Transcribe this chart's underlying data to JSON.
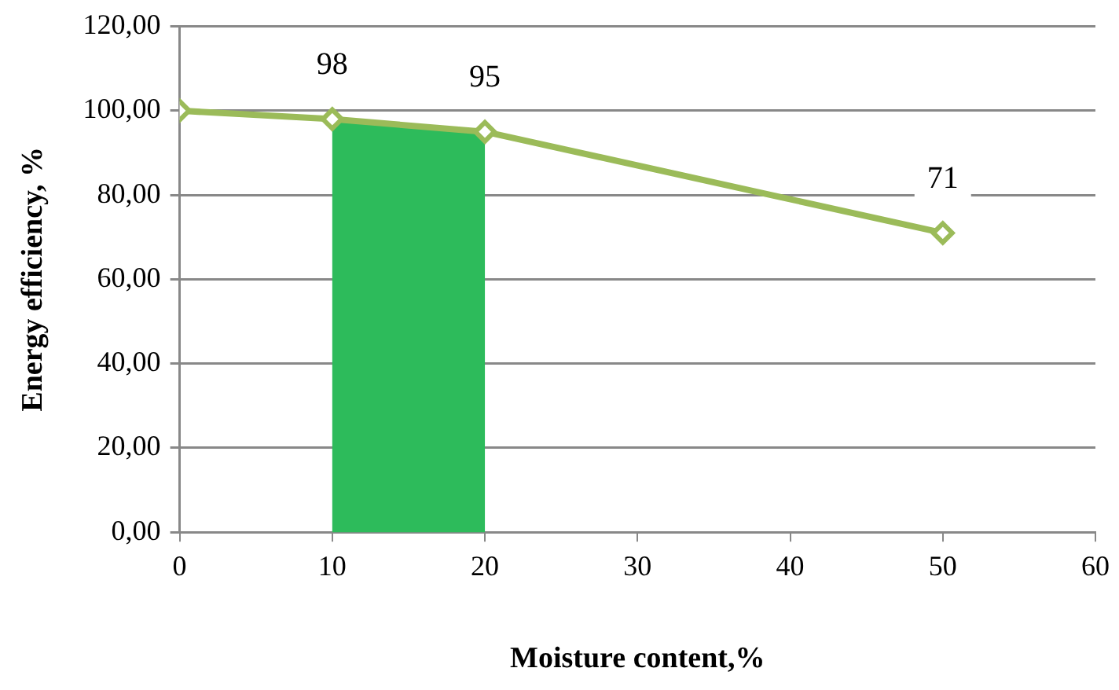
{
  "chart_data": {
    "type": "line",
    "xlabel": "Moisture content,%",
    "ylabel": "Energy efficiency, %",
    "x": [
      0,
      10,
      20,
      50
    ],
    "series": [
      {
        "color": "#9bbb59",
        "values": [
          100,
          98,
          95,
          71
        ],
        "value_labels": [
          null,
          "98",
          "95",
          "71"
        ]
      }
    ],
    "xlim": [
      0,
      60
    ],
    "xticks": [
      0,
      10,
      20,
      30,
      40,
      50,
      60
    ],
    "ylim": [
      0,
      120
    ],
    "yticks": [
      {
        "value": 0,
        "label": "0,00"
      },
      {
        "value": 20,
        "label": "20,00"
      },
      {
        "value": 40,
        "label": "40,00"
      },
      {
        "value": 60,
        "label": "60,00"
      },
      {
        "value": 80,
        "label": "80,00"
      },
      {
        "value": 100,
        "label": "100,00"
      },
      {
        "value": 120,
        "label": "120,00"
      }
    ],
    "grid": "y",
    "marker": "diamond",
    "line_style": "solid",
    "legend": false,
    "bands": [
      {
        "axis": "x",
        "from": 10,
        "to": 20,
        "color": "#2dbb5b"
      }
    ]
  }
}
